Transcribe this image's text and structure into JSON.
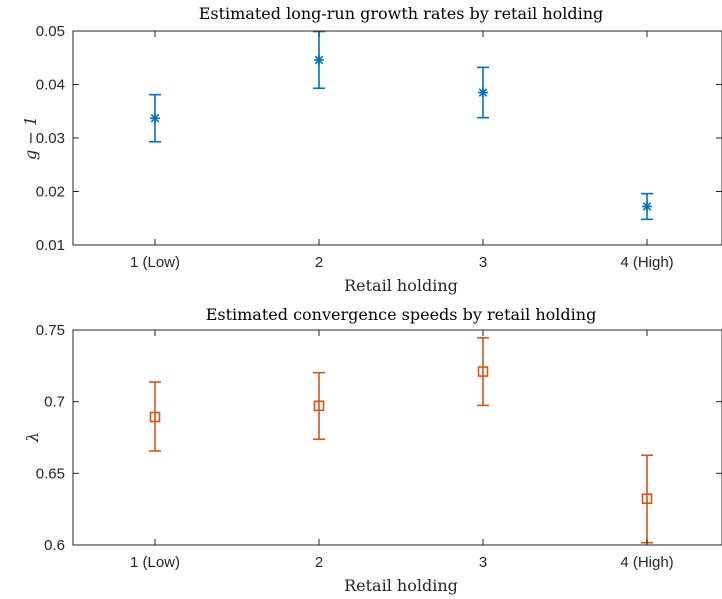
{
  "chart_data": [
    {
      "type": "scatter",
      "title": "Estimated long-run growth rates by retail holding",
      "xlabel": "Retail holding",
      "ylabel": "g − 1",
      "categories": [
        "1 (Low)",
        "2",
        "3",
        "4 (High)"
      ],
      "ylim": [
        0.01,
        0.05
      ],
      "yticks": [
        "0.01",
        "0.02",
        "0.03",
        "0.04",
        "0.05"
      ],
      "grid": false,
      "marker": "asterisk",
      "color": "#0072BD",
      "series": [
        {
          "values": [
            0.0337,
            0.0446,
            0.0385,
            0.0172
          ],
          "lower": [
            0.0293,
            0.0393,
            0.0338,
            0.0148
          ],
          "upper": [
            0.0381,
            0.0499,
            0.0432,
            0.0196
          ]
        }
      ]
    },
    {
      "type": "scatter",
      "title": "Estimated convergence speeds by retail holding",
      "xlabel": "Retail holding",
      "ylabel": "λ",
      "categories": [
        "1 (Low)",
        "2",
        "3",
        "4 (High)"
      ],
      "ylim": [
        0.6,
        0.75
      ],
      "yticks": [
        "0.6",
        "0.65",
        "0.7",
        "0.75"
      ],
      "grid": false,
      "marker": "square",
      "color": "#D95319",
      "series": [
        {
          "values": [
            0.6893,
            0.6971,
            0.721,
            0.6323
          ],
          "lower": [
            0.6656,
            0.6738,
            0.6974,
            0.6016
          ],
          "upper": [
            0.7137,
            0.7202,
            0.7445,
            0.6626
          ]
        }
      ]
    }
  ]
}
